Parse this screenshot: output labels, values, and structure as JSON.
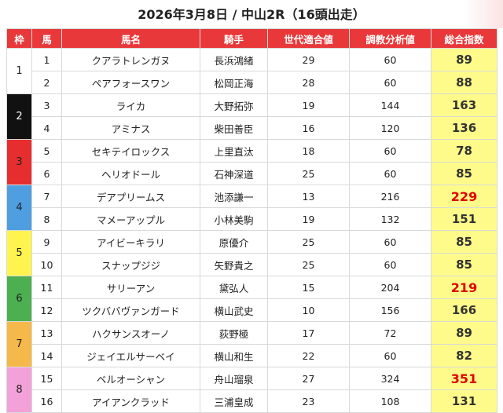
{
  "title": "2026年3月8日 / 中山2R（16頭出走）",
  "headers": [
    "枠",
    "馬",
    "馬名",
    "騎手",
    "世代適合値",
    "調教分析値",
    "総合指数"
  ],
  "colors": {
    "header_bg": "#e8383a",
    "score_bg": "#fffb8a",
    "score_highlight": "#e00000",
    "waku": [
      "#ffffff",
      "#111111",
      "#e62e2e",
      "#4f9fe0",
      "#fff44f",
      "#4caf50",
      "#f5b84a",
      "#f2a2d8"
    ]
  },
  "groups": [
    {
      "waku": "1",
      "rows": [
        {
          "no": "1",
          "name": "クアラトレンガヌ",
          "jockey": "長浜鴻緒",
          "gen": "29",
          "train": "60",
          "score": "89",
          "hi": false
        },
        {
          "no": "2",
          "name": "ペアフォースワン",
          "jockey": "松岡正海",
          "gen": "28",
          "train": "60",
          "score": "88",
          "hi": false
        }
      ]
    },
    {
      "waku": "2",
      "rows": [
        {
          "no": "3",
          "name": "ライカ",
          "jockey": "大野拓弥",
          "gen": "19",
          "train": "144",
          "score": "163",
          "hi": false
        },
        {
          "no": "4",
          "name": "アミナス",
          "jockey": "柴田善臣",
          "gen": "16",
          "train": "120",
          "score": "136",
          "hi": false
        }
      ]
    },
    {
      "waku": "3",
      "rows": [
        {
          "no": "5",
          "name": "セキテイロックス",
          "jockey": "上里直汰",
          "gen": "18",
          "train": "60",
          "score": "78",
          "hi": false
        },
        {
          "no": "6",
          "name": "ヘリオドール",
          "jockey": "石神深道",
          "gen": "25",
          "train": "60",
          "score": "85",
          "hi": false
        }
      ]
    },
    {
      "waku": "4",
      "rows": [
        {
          "no": "7",
          "name": "デアプリームス",
          "jockey": "池添謙一",
          "gen": "13",
          "train": "216",
          "score": "229",
          "hi": true
        },
        {
          "no": "8",
          "name": "マメーアップル",
          "jockey": "小林美駒",
          "gen": "19",
          "train": "132",
          "score": "151",
          "hi": false
        }
      ]
    },
    {
      "waku": "5",
      "rows": [
        {
          "no": "9",
          "name": "アイビーキラリ",
          "jockey": "原優介",
          "gen": "25",
          "train": "60",
          "score": "85",
          "hi": false
        },
        {
          "no": "10",
          "name": "スナップジジ",
          "jockey": "矢野貴之",
          "gen": "25",
          "train": "60",
          "score": "85",
          "hi": false
        }
      ]
    },
    {
      "waku": "6",
      "rows": [
        {
          "no": "11",
          "name": "サリーアン",
          "jockey": "黛弘人",
          "gen": "15",
          "train": "204",
          "score": "219",
          "hi": true
        },
        {
          "no": "12",
          "name": "ツクババヴァンガード",
          "jockey": "横山武史",
          "gen": "10",
          "train": "156",
          "score": "166",
          "hi": false
        }
      ]
    },
    {
      "waku": "7",
      "rows": [
        {
          "no": "13",
          "name": "ハクサンスオーノ",
          "jockey": "荻野極",
          "gen": "17",
          "train": "72",
          "score": "89",
          "hi": false
        },
        {
          "no": "14",
          "name": "ジェイエルサーベイ",
          "jockey": "横山和生",
          "gen": "22",
          "train": "60",
          "score": "82",
          "hi": false
        }
      ]
    },
    {
      "waku": "8",
      "rows": [
        {
          "no": "15",
          "name": "ベルオーシャン",
          "jockey": "舟山瑠泉",
          "gen": "27",
          "train": "324",
          "score": "351",
          "hi": true
        },
        {
          "no": "16",
          "name": "アイアンクラッド",
          "jockey": "三浦皇成",
          "gen": "23",
          "train": "108",
          "score": "131",
          "hi": false
        }
      ]
    }
  ]
}
